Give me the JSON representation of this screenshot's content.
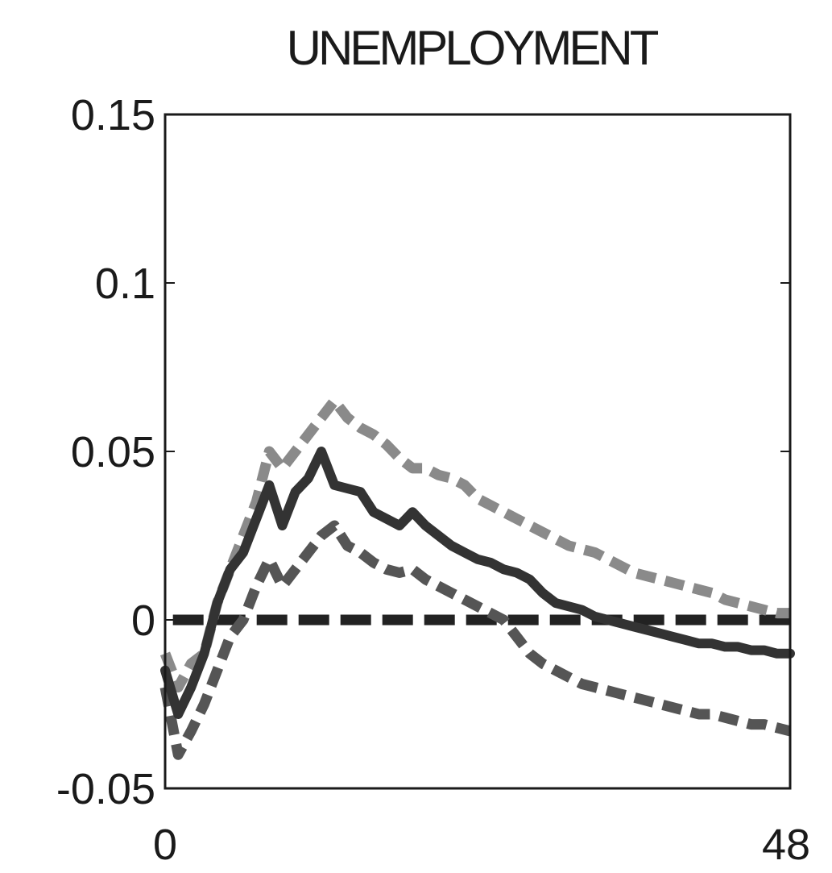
{
  "chart_data": {
    "type": "line",
    "title": "UNEMPLOYMENT",
    "xlabel": "",
    "ylabel": "",
    "xlim": [
      0,
      48
    ],
    "ylim": [
      -0.05,
      0.15
    ],
    "x_ticks": [
      "0",
      "48"
    ],
    "y_ticks": [
      "0.15",
      "0.1",
      "0.05",
      "0",
      "-0.05"
    ],
    "y_tick_values": [
      0.15,
      0.1,
      0.05,
      0,
      -0.05
    ],
    "grid": false,
    "legend": "none",
    "series": [
      {
        "role": "upper-band",
        "style": "dashed",
        "color": "#8a8a8a",
        "x": [
          0,
          1,
          2,
          3,
          4,
          5,
          6,
          7,
          8,
          9,
          10,
          11,
          12,
          13,
          14,
          15,
          16,
          17,
          18,
          19,
          20,
          21,
          22,
          23,
          24,
          25,
          26,
          27,
          28,
          29,
          30,
          31,
          32,
          33,
          34,
          35,
          36,
          37,
          38,
          39,
          40,
          41,
          42,
          43,
          44,
          45,
          46,
          47,
          48
        ],
        "values": [
          -0.01,
          -0.02,
          -0.013,
          -0.01,
          0.005,
          0.015,
          0.025,
          0.035,
          0.05,
          0.045,
          0.05,
          0.055,
          0.06,
          0.065,
          0.06,
          0.057,
          0.055,
          0.052,
          0.048,
          0.045,
          0.045,
          0.043,
          0.042,
          0.04,
          0.036,
          0.034,
          0.032,
          0.03,
          0.028,
          0.026,
          0.024,
          0.022,
          0.021,
          0.02,
          0.018,
          0.016,
          0.014,
          0.013,
          0.012,
          0.011,
          0.01,
          0.009,
          0.008,
          0.006,
          0.005,
          0.004,
          0.003,
          0.002,
          0.002
        ]
      },
      {
        "role": "point-estimate",
        "style": "solid",
        "color": "#333333",
        "x": [
          0,
          1,
          2,
          3,
          4,
          5,
          6,
          7,
          8,
          9,
          10,
          11,
          12,
          13,
          14,
          15,
          16,
          17,
          18,
          19,
          20,
          21,
          22,
          23,
          24,
          25,
          26,
          27,
          28,
          29,
          30,
          31,
          32,
          33,
          34,
          35,
          36,
          37,
          38,
          39,
          40,
          41,
          42,
          43,
          44,
          45,
          46,
          47,
          48
        ],
        "values": [
          -0.015,
          -0.028,
          -0.02,
          -0.01,
          0.005,
          0.015,
          0.02,
          0.03,
          0.04,
          0.028,
          0.038,
          0.042,
          0.05,
          0.04,
          0.039,
          0.038,
          0.032,
          0.03,
          0.028,
          0.032,
          0.028,
          0.025,
          0.022,
          0.02,
          0.018,
          0.017,
          0.015,
          0.014,
          0.012,
          0.008,
          0.005,
          0.004,
          0.003,
          0.001,
          0.0,
          -0.001,
          -0.002,
          -0.003,
          -0.004,
          -0.005,
          -0.006,
          -0.007,
          -0.007,
          -0.008,
          -0.008,
          -0.009,
          -0.009,
          -0.01,
          -0.01
        ]
      },
      {
        "role": "lower-band",
        "style": "dashed",
        "color": "#555555",
        "x": [
          0,
          1,
          2,
          3,
          4,
          5,
          6,
          7,
          8,
          9,
          10,
          11,
          12,
          13,
          14,
          15,
          16,
          17,
          18,
          19,
          20,
          21,
          22,
          23,
          24,
          25,
          26,
          27,
          28,
          29,
          30,
          31,
          32,
          33,
          34,
          35,
          36,
          37,
          38,
          39,
          40,
          41,
          42,
          43,
          44,
          45,
          46,
          47,
          48
        ],
        "values": [
          -0.02,
          -0.04,
          -0.033,
          -0.025,
          -0.015,
          -0.005,
          0.0,
          0.01,
          0.018,
          0.01,
          0.015,
          0.02,
          0.025,
          0.028,
          0.022,
          0.02,
          0.017,
          0.015,
          0.014,
          0.015,
          0.012,
          0.01,
          0.008,
          0.006,
          0.004,
          0.002,
          0.0,
          -0.005,
          -0.01,
          -0.013,
          -0.015,
          -0.017,
          -0.019,
          -0.02,
          -0.021,
          -0.022,
          -0.023,
          -0.024,
          -0.025,
          -0.026,
          -0.027,
          -0.028,
          -0.028,
          -0.029,
          -0.03,
          -0.031,
          -0.031,
          -0.032,
          -0.033
        ]
      }
    ],
    "reference_line": {
      "y": 0,
      "style": "dashed",
      "color": "#222222"
    }
  }
}
